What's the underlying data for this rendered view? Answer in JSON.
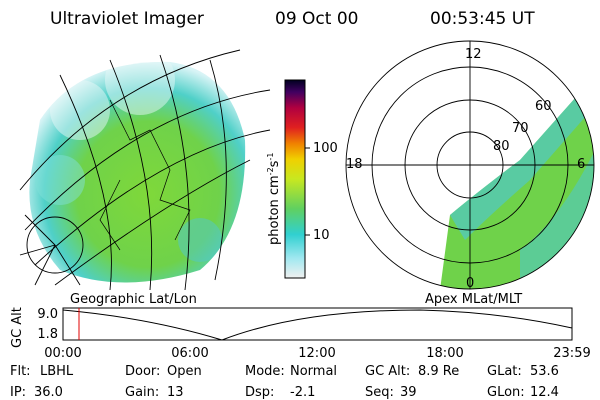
{
  "header": {
    "title": "Ultraviolet Imager",
    "date": "09 Oct 00",
    "time": "00:53:45 UT"
  },
  "colorbar": {
    "unit": {
      "base": "photon cm",
      "exp1": "-2",
      "mid": "s",
      "exp2": "-1"
    },
    "ticks": [
      "100",
      "10"
    ]
  },
  "polar": {
    "mlt_labels": {
      "top": "12",
      "left": "18",
      "right": "6",
      "bottom": "0"
    },
    "lat_labels": [
      "80",
      "70",
      "60"
    ]
  },
  "captions": {
    "left": "Geographic Lat/Lon",
    "right": "Apex MLat/MLT"
  },
  "altitude": {
    "axis_label": "GC Alt",
    "ticks": [
      "9.0",
      "1.8"
    ],
    "time_ticks": [
      "00:00",
      "06:00",
      "12:00",
      "18:00",
      "23:59"
    ]
  },
  "status": {
    "rows": [
      [
        {
          "label": "Flt:",
          "value": "LBHL"
        },
        {
          "label": "Door:",
          "value": "Open"
        },
        {
          "label": "Mode:",
          "value": "Normal"
        },
        {
          "label": "GC Alt:",
          "value": "8.9 Re"
        },
        {
          "label": "GLat:",
          "value": "53.6"
        }
      ],
      [
        {
          "label": "IP:",
          "value": "36.0"
        },
        {
          "label": "Gain:",
          "value": "13"
        },
        {
          "label": "Dsp:",
          "value": "-2.1"
        },
        {
          "label": "Seq:",
          "value": "39"
        },
        {
          "label": "GLon:",
          "value": "12.4"
        }
      ]
    ]
  }
}
